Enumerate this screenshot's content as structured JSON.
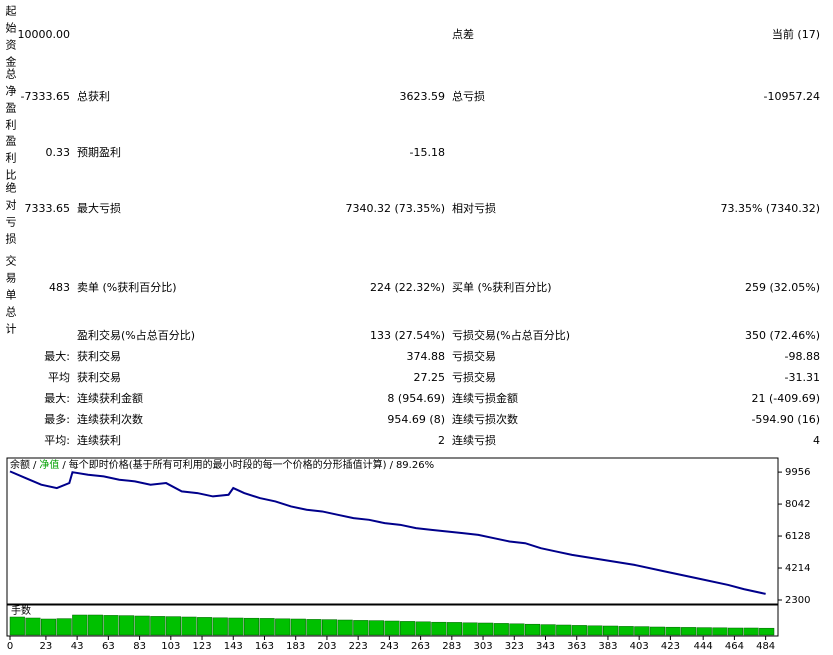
{
  "report": {
    "rows": [
      {
        "side": "起始资金",
        "value": "10000.00",
        "label2": "点差",
        "value2": "当前 (17)"
      },
      {
        "side": "总净盈利",
        "value": "-7333.65",
        "label1": "总获利",
        "value1": "3623.59",
        "label2": "总亏损",
        "value2": "-10957.24"
      },
      {
        "side": "盈利比",
        "value": "0.33",
        "label1": "预期盈利",
        "value1": "-15.18"
      },
      {
        "side": "绝对亏损",
        "value": "7333.65",
        "label1": "最大亏损",
        "value1": "7340.32 (73.35%)",
        "label2": "相对亏损",
        "value2": "73.35% (7340.32)"
      },
      {
        "side": "交易单总计",
        "value": "483",
        "label1": "卖单 (%获利百分比)",
        "value1": "224 (22.32%)",
        "label2": "买单 (%获利百分比)",
        "value2": "259 (32.05%)"
      },
      {
        "label1": "盈利交易(%占总百分比)",
        "value1": "133 (27.54%)",
        "label2": "亏损交易(%占总百分比)",
        "value2": "350 (72.46%)"
      },
      {
        "value": "最大:",
        "label1": "获利交易",
        "value1": "374.88",
        "label2": "亏损交易",
        "value2": "-98.88"
      },
      {
        "value": "平均",
        "label1": "获利交易",
        "value1": "27.25",
        "label2": "亏损交易",
        "value2": "-31.31"
      },
      {
        "value": "最大:",
        "label1": "连续获利金额",
        "value1": "8 (954.69)",
        "label2": "连续亏损金额",
        "value2": "21 (-409.69)"
      },
      {
        "value": "最多:",
        "label1": "连续获利次数",
        "value1": "954.69 (8)",
        "label2": "连续亏损次数",
        "value2": "-594.90 (16)"
      },
      {
        "value": "平均:",
        "label1": "连续获利",
        "value1": "2",
        "label2": "连续亏损",
        "value2": "4"
      }
    ]
  },
  "chart_data": [
    {
      "type": "line",
      "legend": [
        "余额",
        "净值",
        "每个即时价格(基于所有可利用的最小时段的每一个价格的分形插值计算)",
        "89.26%"
      ],
      "separator": "/",
      "legend_colors": [
        "#000000",
        "#00a000",
        "#000000",
        "#000000"
      ],
      "x": [
        0,
        10,
        20,
        30,
        38,
        40,
        50,
        60,
        70,
        80,
        90,
        100,
        110,
        120,
        130,
        140,
        143,
        150,
        160,
        170,
        180,
        190,
        200,
        210,
        220,
        230,
        240,
        250,
        260,
        270,
        280,
        290,
        300,
        310,
        320,
        330,
        340,
        350,
        360,
        380,
        400,
        420,
        440,
        460,
        470,
        484
      ],
      "series": [
        {
          "name": "余额",
          "color": "#00008b",
          "values": [
            10000,
            9600,
            9200,
            9000,
            9300,
            9950,
            9800,
            9700,
            9500,
            9400,
            9200,
            9300,
            8800,
            8700,
            8500,
            8600,
            9000,
            8700,
            8400,
            8200,
            7900,
            7700,
            7600,
            7400,
            7200,
            7100,
            6900,
            6800,
            6600,
            6500,
            6400,
            6300,
            6200,
            6000,
            5800,
            5700,
            5400,
            5200,
            5000,
            4700,
            4400,
            4000,
            3600,
            3200,
            2950,
            2666
          ]
        }
      ],
      "xlim": [
        0,
        490
      ],
      "ylim": [
        2060,
        10800
      ],
      "xticks": [
        0,
        23,
        43,
        63,
        83,
        103,
        123,
        143,
        163,
        183,
        203,
        223,
        243,
        263,
        283,
        303,
        323,
        343,
        363,
        383,
        403,
        423,
        444,
        464,
        484
      ],
      "yticks": [
        9956,
        8042,
        6128,
        4214,
        2300
      ]
    },
    {
      "type": "bar",
      "title": "手数",
      "color": "#00c000",
      "x": [
        0,
        10,
        20,
        30,
        40,
        50,
        60,
        70,
        80,
        90,
        100,
        110,
        120,
        130,
        140,
        150,
        160,
        170,
        180,
        190,
        200,
        210,
        220,
        230,
        240,
        250,
        260,
        270,
        280,
        290,
        300,
        310,
        320,
        330,
        340,
        350,
        360,
        370,
        380,
        390,
        400,
        410,
        420,
        430,
        440,
        450,
        460,
        470,
        480
      ],
      "values": [
        0.9,
        0.85,
        0.8,
        0.82,
        1,
        1,
        0.98,
        0.97,
        0.95,
        0.93,
        0.92,
        0.9,
        0.88,
        0.86,
        0.85,
        0.84,
        0.83,
        0.81,
        0.8,
        0.78,
        0.77,
        0.75,
        0.73,
        0.72,
        0.7,
        0.68,
        0.66,
        0.64,
        0.63,
        0.61,
        0.6,
        0.58,
        0.56,
        0.54,
        0.52,
        0.5,
        0.48,
        0.46,
        0.45,
        0.43,
        0.42,
        0.4,
        0.39,
        0.38,
        0.37,
        0.36,
        0.35,
        0.35,
        0.34
      ],
      "ylim": [
        0,
        1.1
      ]
    }
  ]
}
